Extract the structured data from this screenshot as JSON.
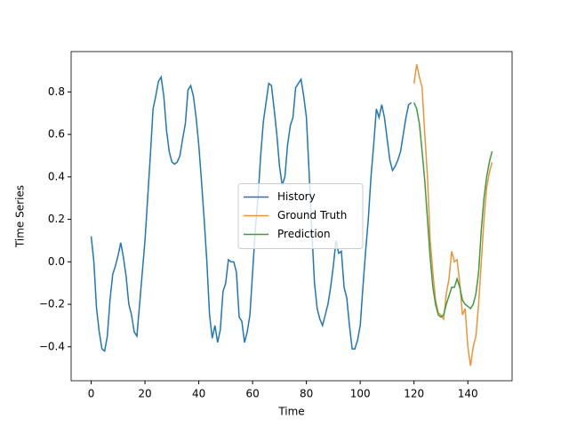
{
  "chart_data": {
    "type": "line",
    "xlabel": "Time",
    "ylabel": "Time Series",
    "xlim": [
      -7.45,
      156.45
    ],
    "ylim": [
      -0.56,
      0.99
    ],
    "xticks": [
      0,
      20,
      40,
      60,
      80,
      100,
      120,
      140
    ],
    "yticks": [
      {
        "value": -0.4,
        "label": "−0.4"
      },
      {
        "value": -0.2,
        "label": "−0.2"
      },
      {
        "value": 0.0,
        "label": "0.0"
      },
      0.2,
      0.4,
      0.6,
      0.8
    ],
    "legend": "center",
    "series": [
      {
        "name": "History",
        "color": "#1f77b4",
        "x": [
          0,
          1,
          2,
          3,
          4,
          5,
          6,
          7,
          8,
          9,
          10,
          11,
          12,
          13,
          14,
          15,
          16,
          17,
          18,
          19,
          20,
          21,
          22,
          23,
          24,
          25,
          26,
          27,
          28,
          29,
          30,
          31,
          32,
          33,
          34,
          35,
          36,
          37,
          38,
          39,
          40,
          41,
          42,
          43,
          44,
          45,
          46,
          47,
          48,
          49,
          50,
          51,
          52,
          53,
          54,
          55,
          56,
          57,
          58,
          59,
          60,
          61,
          62,
          63,
          64,
          65,
          66,
          67,
          68,
          69,
          70,
          71,
          72,
          73,
          74,
          75,
          76,
          77,
          78,
          79,
          80,
          81,
          82,
          83,
          84,
          85,
          86,
          87,
          88,
          89,
          90,
          91,
          92,
          93,
          94,
          95,
          96,
          97,
          98,
          99,
          100,
          101,
          102,
          103,
          104,
          105,
          106,
          107,
          108,
          109,
          110,
          111,
          112,
          113,
          114,
          115,
          116,
          117,
          118,
          119
        ],
        "values": [
          0.12,
          0.0,
          -0.22,
          -0.33,
          -0.41,
          -0.42,
          -0.35,
          -0.18,
          -0.06,
          -0.02,
          0.03,
          0.09,
          0.02,
          -0.07,
          -0.2,
          -0.25,
          -0.33,
          -0.35,
          -0.2,
          -0.05,
          0.1,
          0.3,
          0.5,
          0.72,
          0.78,
          0.85,
          0.87,
          0.78,
          0.62,
          0.52,
          0.47,
          0.46,
          0.47,
          0.5,
          0.58,
          0.65,
          0.81,
          0.83,
          0.78,
          0.68,
          0.55,
          0.38,
          0.2,
          0.0,
          -0.25,
          -0.36,
          -0.3,
          -0.38,
          -0.32,
          -0.14,
          -0.1,
          0.01,
          0.0,
          0.0,
          -0.05,
          -0.26,
          -0.28,
          -0.38,
          -0.33,
          -0.25,
          -0.05,
          0.15,
          0.3,
          0.5,
          0.66,
          0.75,
          0.84,
          0.83,
          0.72,
          0.6,
          0.45,
          0.36,
          0.4,
          0.55,
          0.64,
          0.68,
          0.82,
          0.84,
          0.86,
          0.78,
          0.68,
          0.42,
          0.15,
          -0.1,
          -0.22,
          -0.27,
          -0.3,
          -0.25,
          -0.2,
          -0.12,
          -0.02,
          0.1,
          0.04,
          0.05,
          -0.12,
          -0.17,
          -0.3,
          -0.41,
          -0.41,
          -0.37,
          -0.3,
          -0.12,
          0.05,
          0.2,
          0.4,
          0.55,
          0.72,
          0.68,
          0.74,
          0.68,
          0.58,
          0.48,
          0.43,
          0.45,
          0.48,
          0.52,
          0.6,
          0.68,
          0.74,
          0.75
        ]
      },
      {
        "name": "Ground Truth",
        "color": "#e8953a",
        "x": [
          120,
          121,
          122,
          123,
          124,
          125,
          126,
          127,
          128,
          129,
          130,
          131,
          132,
          133,
          134,
          135,
          136,
          137,
          138,
          139,
          140,
          141,
          142,
          143,
          144,
          145,
          146,
          147,
          148,
          149
        ],
        "values": [
          0.84,
          0.93,
          0.87,
          0.82,
          0.6,
          0.4,
          0.1,
          -0.05,
          -0.18,
          -0.24,
          -0.25,
          -0.27,
          -0.15,
          -0.08,
          0.05,
          0.0,
          0.01,
          -0.1,
          -0.25,
          -0.22,
          -0.4,
          -0.49,
          -0.4,
          -0.35,
          -0.2,
          0.0,
          0.2,
          0.35,
          0.42,
          0.47
        ]
      },
      {
        "name": "Prediction",
        "color": "#3f9b3f",
        "x": [
          120,
          121,
          122,
          123,
          124,
          125,
          126,
          127,
          128,
          129,
          130,
          131,
          132,
          133,
          134,
          135,
          136,
          137,
          138,
          139,
          140,
          141,
          142,
          143,
          144,
          145,
          146,
          147,
          148,
          149
        ],
        "values": [
          0.75,
          0.72,
          0.65,
          0.52,
          0.38,
          0.2,
          0.02,
          -0.12,
          -0.2,
          -0.25,
          -0.26,
          -0.25,
          -0.2,
          -0.16,
          -0.12,
          -0.12,
          -0.08,
          -0.12,
          -0.18,
          -0.2,
          -0.21,
          -0.22,
          -0.2,
          -0.15,
          -0.05,
          0.15,
          0.3,
          0.4,
          0.47,
          0.52
        ]
      }
    ]
  }
}
